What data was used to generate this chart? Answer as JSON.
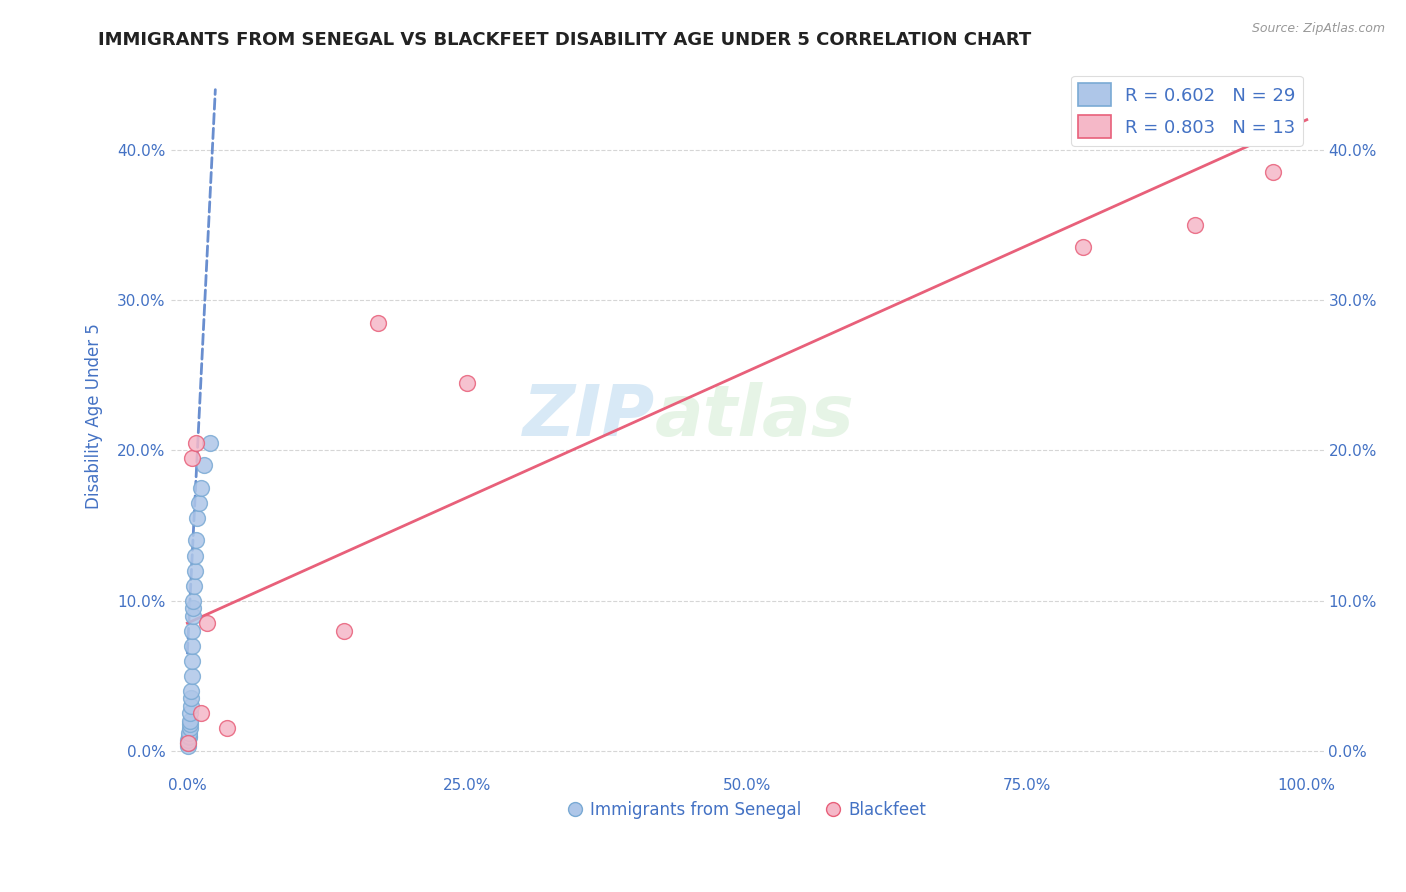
{
  "title": "IMMIGRANTS FROM SENEGAL VS BLACKFEET DISABILITY AGE UNDER 5 CORRELATION CHART",
  "source": "Source: ZipAtlas.com",
  "xlabel": "",
  "ylabel": "Disability Age Under 5",
  "legend_label_1": "Immigrants from Senegal",
  "legend_label_2": "Blackfeet",
  "R1": 0.602,
  "N1": 29,
  "R2": 0.803,
  "N2": 13,
  "blue_color": "#aec6e8",
  "blue_edge": "#7aaad4",
  "pink_color": "#f5b8c8",
  "pink_edge": "#e8607a",
  "blue_line_color": "#4472C4",
  "pink_line_color": "#e8607a",
  "watermark_zip": "ZIP",
  "watermark_atlas": "atlas",
  "blue_scatter_x": [
    0.05,
    0.08,
    0.1,
    0.12,
    0.15,
    0.18,
    0.2,
    0.22,
    0.25,
    0.28,
    0.3,
    0.32,
    0.35,
    0.38,
    0.4,
    0.42,
    0.45,
    0.48,
    0.5,
    0.55,
    0.6,
    0.65,
    0.7,
    0.8,
    0.9,
    1.0,
    1.2,
    1.5,
    2.0
  ],
  "blue_scatter_y": [
    0.3,
    0.5,
    0.7,
    0.9,
    1.0,
    1.2,
    1.5,
    1.8,
    2.0,
    2.5,
    3.0,
    3.5,
    4.0,
    5.0,
    6.0,
    7.0,
    8.0,
    9.0,
    9.5,
    10.0,
    11.0,
    12.0,
    13.0,
    14.0,
    15.5,
    16.5,
    17.5,
    19.0,
    20.5
  ],
  "pink_scatter_x": [
    0.1,
    0.4,
    0.8,
    1.2,
    1.8,
    3.5,
    14.0,
    17.0,
    25.0,
    80.0,
    90.0,
    96.0,
    97.0
  ],
  "pink_scatter_y": [
    0.5,
    19.5,
    20.5,
    2.5,
    8.5,
    1.5,
    8.0,
    28.5,
    24.5,
    33.5,
    35.0,
    41.0,
    38.5
  ],
  "blue_line_x0": 0.0,
  "blue_line_y0": 6.5,
  "blue_line_x1": 2.5,
  "blue_line_y1": 44.0,
  "pink_line_x0": 0.0,
  "pink_line_y0": 8.5,
  "pink_line_x1": 100.0,
  "pink_line_y1": 42.0,
  "xlim": [
    -1.5,
    101.5
  ],
  "ylim": [
    -1.5,
    46
  ],
  "yticks": [
    0,
    10,
    20,
    30,
    40
  ],
  "ytick_labels": [
    "0.0%",
    "10.0%",
    "20.0%",
    "30.0%",
    "40.0%"
  ],
  "xticks": [
    0,
    25,
    50,
    75,
    100
  ],
  "xtick_labels": [
    "0.0%",
    "25.0%",
    "50.0%",
    "75.0%",
    "100.0%"
  ],
  "grid_color": "#cccccc",
  "background_color": "#ffffff",
  "title_color": "#222222",
  "tick_label_color": "#4472C4"
}
